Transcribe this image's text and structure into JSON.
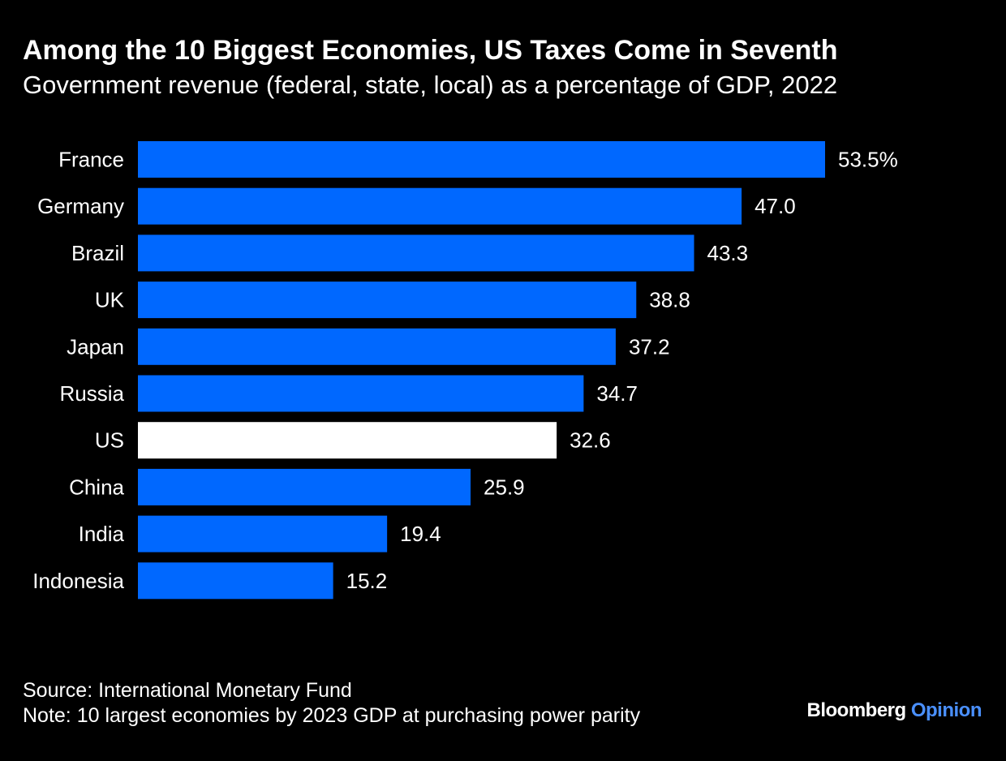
{
  "chart_data": {
    "type": "bar",
    "orientation": "horizontal",
    "title": "Among the 10 Biggest Economies, US Taxes Come in Seventh",
    "subtitle": "Government revenue (federal, state, local) as a percentage of GDP, 2022",
    "categories": [
      "France",
      "Germany",
      "Brazil",
      "UK",
      "Japan",
      "Russia",
      "US",
      "China",
      "India",
      "Indonesia"
    ],
    "values": [
      53.5,
      47.0,
      43.3,
      38.8,
      37.2,
      34.7,
      32.6,
      25.9,
      19.4,
      15.2
    ],
    "value_labels": [
      "53.5%",
      "47.0",
      "43.3",
      "38.8",
      "37.2",
      "34.7",
      "32.6",
      "25.9",
      "19.4",
      "15.2"
    ],
    "highlight": "US",
    "xlim": [
      0,
      53.5
    ],
    "grid": false,
    "legend": "none"
  },
  "colors": {
    "background": "#000000",
    "bar": "#0068ff",
    "highlight_bar": "#ffffff",
    "text": "#ffffff",
    "brand_accent": "#4a90ff"
  },
  "footer": {
    "source": "Source: International Monetary Fund",
    "note": "Note: 10 largest economies by 2023 GDP at purchasing power parity"
  },
  "brand": {
    "name": "Bloomberg",
    "section": "Opinion"
  }
}
